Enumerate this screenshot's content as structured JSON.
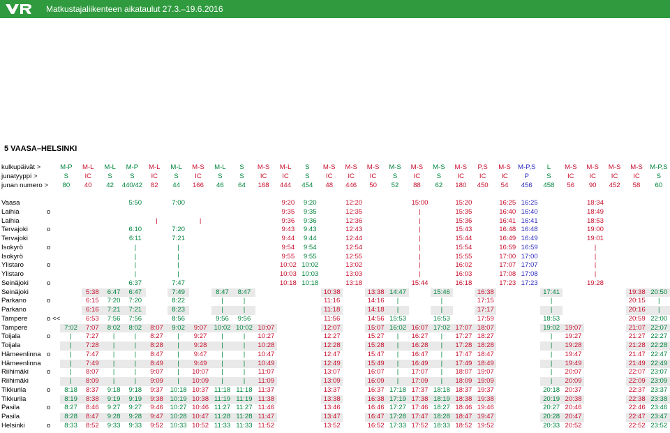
{
  "header": {
    "title": "Matkustajaliikenteen aikataulut 27.3.–19.6.2016"
  },
  "section_title": "5 VAASA–HELSINKI",
  "labels": {
    "days": "kulkupäivät >",
    "type": "junatyyppi >",
    "num": "junan numero >"
  },
  "colors": {
    "green": "#00843d",
    "red": "#c8102e",
    "blue": "#2b2bbf",
    "header_bg": "#2f9a3e",
    "shade": "#e9e9e9"
  },
  "days": [
    "M-P",
    "M-L",
    "M-L",
    "M-P",
    "M-L",
    "M-L",
    "M-S",
    "M-L",
    "S",
    "M-S",
    "M-L",
    "S",
    "M-S",
    "M-S",
    "M-S",
    "M-S",
    "M-S",
    "M-S",
    "M-S",
    "P,S",
    "M-S",
    "M-P,S",
    "L",
    "M-S",
    "M-S",
    "M-S",
    "M-S",
    "M-P,S"
  ],
  "types": [
    "S",
    "IC",
    "S",
    "S",
    "IC",
    "S",
    "IC",
    "S",
    "S",
    "IC",
    "IC",
    "S",
    "IC",
    "IC",
    "IC",
    "S",
    "IC",
    "S",
    "IC",
    "IC",
    "IC",
    "P",
    "S",
    "IC",
    "IC",
    "IC",
    "IC",
    "S"
  ],
  "numbers": [
    "80",
    "40",
    "42",
    "440/42",
    "82",
    "44",
    "166",
    "46",
    "64",
    "168",
    "444",
    "454",
    "48",
    "446",
    "50",
    "52",
    "88",
    "62",
    "180",
    "450",
    "54",
    "456",
    "458",
    "56",
    "90",
    "452",
    "58",
    "60"
  ],
  "column_colors": [
    "g",
    "r",
    "g",
    "g",
    "r",
    "g",
    "r",
    "g",
    "g",
    "r",
    "r",
    "g",
    "r",
    "r",
    "r",
    "g",
    "r",
    "g",
    "r",
    "r",
    "r",
    "b",
    "g",
    "r",
    "r",
    "r",
    "r",
    "g"
  ],
  "stations": [
    {
      "name": "Vaasa",
      "ar": "",
      "c": [
        "",
        "",
        "",
        "5:50",
        "",
        "7:00",
        "",
        "",
        "",
        "",
        "9:20",
        "9:20",
        "",
        "12:20",
        "",
        "",
        "15:00",
        "",
        "15:20",
        "",
        "16:25",
        "16:25",
        "",
        "",
        "18:34",
        "",
        "",
        ""
      ]
    },
    {
      "name": "Laihia",
      "ar": "o",
      "c": [
        "",
        "",
        "",
        "",
        "",
        "",
        "",
        "",
        "",
        "",
        "9:35",
        "9:35",
        "",
        "12:35",
        "",
        "",
        "|",
        "",
        "15:35",
        "",
        "16:40",
        "16:40",
        "",
        "",
        "18:49",
        "",
        "",
        ""
      ]
    },
    {
      "name": "Laihia",
      "ar": "",
      "c": [
        "",
        "",
        "",
        "",
        "|",
        "",
        "|",
        "",
        "",
        "",
        "9:36",
        "9:36",
        "",
        "12:36",
        "",
        "",
        "|",
        "",
        "15:36",
        "",
        "16:41",
        "16:41",
        "",
        "",
        "18:53",
        "",
        "",
        ""
      ]
    },
    {
      "name": "Tervajoki",
      "ar": "o",
      "c": [
        "",
        "",
        "",
        "6:10",
        "",
        "7:20",
        "",
        "",
        "",
        "",
        "9:43",
        "9:43",
        "",
        "12:43",
        "",
        "",
        "|",
        "",
        "15:43",
        "",
        "16:48",
        "16:48",
        "",
        "",
        "19:00",
        "",
        "",
        ""
      ]
    },
    {
      "name": "Tervajoki",
      "ar": "",
      "c": [
        "",
        "",
        "",
        "6:11",
        "",
        "7:21",
        "",
        "",
        "",
        "",
        "9:44",
        "9:44",
        "",
        "12:44",
        "",
        "",
        "|",
        "",
        "15:44",
        "",
        "16:49",
        "16:49",
        "",
        "",
        "19:01",
        "",
        "",
        ""
      ]
    },
    {
      "name": "Isokyrö",
      "ar": "o",
      "c": [
        "",
        "",
        "",
        "|",
        "",
        "|",
        "",
        "",
        "",
        "",
        "9:54",
        "9:54",
        "",
        "12:54",
        "",
        "",
        "|",
        "",
        "15:54",
        "",
        "16:59",
        "16:59",
        "",
        "",
        "|",
        "",
        "",
        ""
      ]
    },
    {
      "name": "Isokyrö",
      "ar": "",
      "c": [
        "",
        "",
        "",
        "|",
        "",
        "|",
        "",
        "",
        "",
        "",
        "9:55",
        "9:55",
        "",
        "12:55",
        "",
        "",
        "|",
        "",
        "15:55",
        "",
        "17:00",
        "17:00",
        "",
        "",
        "|",
        "",
        "",
        ""
      ]
    },
    {
      "name": "Ylistaro",
      "ar": "o",
      "c": [
        "",
        "",
        "",
        "|",
        "",
        "|",
        "",
        "",
        "",
        "",
        "10:02",
        "10:02",
        "",
        "13:02",
        "",
        "",
        "|",
        "",
        "16:02",
        "",
        "17:07",
        "17:07",
        "",
        "",
        "|",
        "",
        "",
        ""
      ]
    },
    {
      "name": "Ylistaro",
      "ar": "",
      "c": [
        "",
        "",
        "",
        "|",
        "",
        "|",
        "",
        "",
        "",
        "",
        "10:03",
        "10:03",
        "",
        "13:03",
        "",
        "",
        "|",
        "",
        "16:03",
        "",
        "17:08",
        "17:08",
        "",
        "",
        "|",
        "",
        "",
        ""
      ]
    },
    {
      "name": "Seinäjoki",
      "ar": "o",
      "c": [
        "",
        "",
        "",
        "6:37",
        "",
        "7:47",
        "",
        "",
        "",
        "",
        "10:18",
        "10:18",
        "",
        "13:18",
        "",
        "",
        "15:44",
        "",
        "16:18",
        "",
        "17:23",
        "17:23",
        "",
        "",
        "19:28",
        "",
        "",
        ""
      ]
    },
    {
      "name": "Seinäjoki",
      "ar": "",
      "c": [
        "",
        "5:38",
        "6:47",
        "6:47",
        "",
        "7:49",
        "",
        "8:47",
        "8:47",
        "",
        "",
        "",
        "10:38",
        "",
        "13:38",
        "14:47",
        "",
        "15:46",
        "",
        "16:38",
        "",
        "",
        "17:41",
        "",
        "",
        "",
        "19:38",
        "20:50"
      ]
    },
    {
      "name": "Parkano",
      "ar": "o",
      "c": [
        "",
        "6:15",
        "7:20",
        "7:20",
        "",
        "8:22",
        "",
        "|",
        "|",
        "",
        "",
        "",
        "11:16",
        "",
        "14:16",
        "|",
        "",
        "|",
        "",
        "17:15",
        "",
        "",
        "|",
        "",
        "",
        "",
        "20:15",
        "|"
      ]
    },
    {
      "name": "Parkano",
      "ar": "",
      "c": [
        "",
        "6:16",
        "7:21",
        "7:21",
        "",
        "8:23",
        "",
        "|",
        "|",
        "",
        "",
        "",
        "11:18",
        "",
        "14:18",
        "|",
        "",
        "|",
        "",
        "17:17",
        "",
        "",
        "|",
        "",
        "",
        "",
        "20:16",
        "|"
      ]
    },
    {
      "name": "Tampere",
      "ar": "o  <<",
      "c": [
        "",
        "6:53",
        "7:56",
        "7:56",
        "",
        "8:56",
        "",
        "9:56",
        "9:56",
        "",
        "",
        "",
        "11:56",
        "",
        "14:56",
        "15:53",
        "",
        "16:53",
        "",
        "17:59",
        "",
        "",
        "18:53",
        "",
        "",
        "",
        "20:59",
        "22:00"
      ]
    },
    {
      "name": "Tampere",
      "ar": "",
      "c": [
        "7:02",
        "7:07",
        "8:02",
        "8:02",
        "8:07",
        "9:02",
        "9:07",
        "10:02",
        "10:02",
        "10:07",
        "",
        "",
        "12:07",
        "",
        "15:07",
        "16:02",
        "16:07",
        "17:02",
        "17:07",
        "18:07",
        "",
        "",
        "19:02",
        "19:07",
        "",
        "",
        "21:07",
        "22:07"
      ]
    },
    {
      "name": "Toijala",
      "ar": "o",
      "c": [
        "|",
        "7:27",
        "|",
        "|",
        "8:27",
        "|",
        "9:27",
        "|",
        "|",
        "10:27",
        "",
        "",
        "12:27",
        "",
        "15:27",
        "|",
        "16:27",
        "|",
        "17:27",
        "18:27",
        "",
        "",
        "|",
        "19:27",
        "",
        "",
        "21:27",
        "22:27"
      ]
    },
    {
      "name": "Toijala",
      "ar": "",
      "c": [
        "|",
        "7:28",
        "|",
        "|",
        "8:28",
        "|",
        "9:28",
        "|",
        "|",
        "10:28",
        "",
        "",
        "12:28",
        "",
        "15:28",
        "|",
        "16:28",
        "|",
        "17:28",
        "18:28",
        "",
        "",
        "|",
        "19:28",
        "",
        "",
        "21:28",
        "22:28"
      ]
    },
    {
      "name": "Hämeenlinna",
      "ar": "o",
      "c": [
        "|",
        "7:47",
        "|",
        "|",
        "8:47",
        "|",
        "9:47",
        "|",
        "|",
        "10:47",
        "",
        "",
        "12:47",
        "",
        "15:47",
        "|",
        "16:47",
        "|",
        "17:47",
        "18:47",
        "",
        "",
        "|",
        "19:47",
        "",
        "",
        "21:47",
        "22:47"
      ]
    },
    {
      "name": "Hämeenlinna",
      "ar": "",
      "c": [
        "|",
        "7:49",
        "|",
        "|",
        "8:49",
        "|",
        "9:49",
        "|",
        "|",
        "10:49",
        "",
        "",
        "12:49",
        "",
        "15:49",
        "|",
        "16:49",
        "|",
        "17:49",
        "18:49",
        "",
        "",
        "|",
        "19:49",
        "",
        "",
        "21:49",
        "22:49"
      ]
    },
    {
      "name": "Riihimäki",
      "ar": "o",
      "c": [
        "|",
        "8:07",
        "|",
        "|",
        "9:07",
        "|",
        "10:07",
        "|",
        "|",
        "11:07",
        "",
        "",
        "13:07",
        "",
        "16:07",
        "|",
        "17:07",
        "|",
        "18:07",
        "19:07",
        "",
        "",
        "|",
        "20:07",
        "",
        "",
        "22:07",
        "23:07"
      ]
    },
    {
      "name": "Riihimäki",
      "ar": "",
      "c": [
        "|",
        "8:09",
        "|",
        "|",
        "9:09",
        "|",
        "10:09",
        "|",
        "|",
        "11:09",
        "",
        "",
        "13:09",
        "",
        "16:09",
        "|",
        "17:09",
        "|",
        "18:09",
        "19:09",
        "",
        "",
        "|",
        "20:09",
        "",
        "",
        "22:09",
        "23:09"
      ]
    },
    {
      "name": "Tikkurila",
      "ar": "o",
      "c": [
        "8:18",
        "8:37",
        "9:18",
        "9:18",
        "9:37",
        "10:18",
        "10:37",
        "11:18",
        "11:18",
        "11:37",
        "",
        "",
        "13:37",
        "",
        "16:37",
        "17:18",
        "17:37",
        "18:18",
        "18:37",
        "19:37",
        "",
        "",
        "20:18",
        "20:37",
        "",
        "",
        "22:37",
        "23:37"
      ]
    },
    {
      "name": "Tikkurila",
      "ar": "",
      "c": [
        "8:19",
        "8:38",
        "9:19",
        "9:19",
        "9:38",
        "10:19",
        "10:38",
        "11:19",
        "11:19",
        "11:38",
        "",
        "",
        "13:38",
        "",
        "16:38",
        "17:19",
        "17:38",
        "18:19",
        "18:38",
        "19:38",
        "",
        "",
        "20:19",
        "20:38",
        "",
        "",
        "22:38",
        "23:38"
      ]
    },
    {
      "name": "Pasila",
      "ar": "o",
      "c": [
        "8:27",
        "8:46",
        "9:27",
        "9:27",
        "9:46",
        "10:27",
        "10:46",
        "11:27",
        "11:27",
        "11:46",
        "",
        "",
        "13:46",
        "",
        "16:46",
        "17:27",
        "17:46",
        "18:27",
        "18:46",
        "19:46",
        "",
        "",
        "20:27",
        "20:46",
        "",
        "",
        "22:46",
        "23:46"
      ]
    },
    {
      "name": "Pasila",
      "ar": "",
      "c": [
        "8:28",
        "8:47",
        "9:28",
        "9:28",
        "9:47",
        "10:28",
        "10:47",
        "11:28",
        "11:28",
        "11:47",
        "",
        "",
        "13:47",
        "",
        "16:47",
        "17:28",
        "17:47",
        "18:28",
        "18:47",
        "19:47",
        "",
        "",
        "20:28",
        "20:47",
        "",
        "",
        "22:47",
        "23:47"
      ]
    },
    {
      "name": "Helsinki",
      "ar": "o",
      "c": [
        "8:33",
        "8:52",
        "9:33",
        "9:33",
        "9:52",
        "10:33",
        "10:52",
        "11:33",
        "11:33",
        "11:52",
        "",
        "",
        "13:52",
        "",
        "16:52",
        "17:33",
        "17:52",
        "18:33",
        "18:52",
        "19:52",
        "",
        "",
        "20:33",
        "20:52",
        "",
        "",
        "22:52",
        "23:52"
      ]
    }
  ]
}
